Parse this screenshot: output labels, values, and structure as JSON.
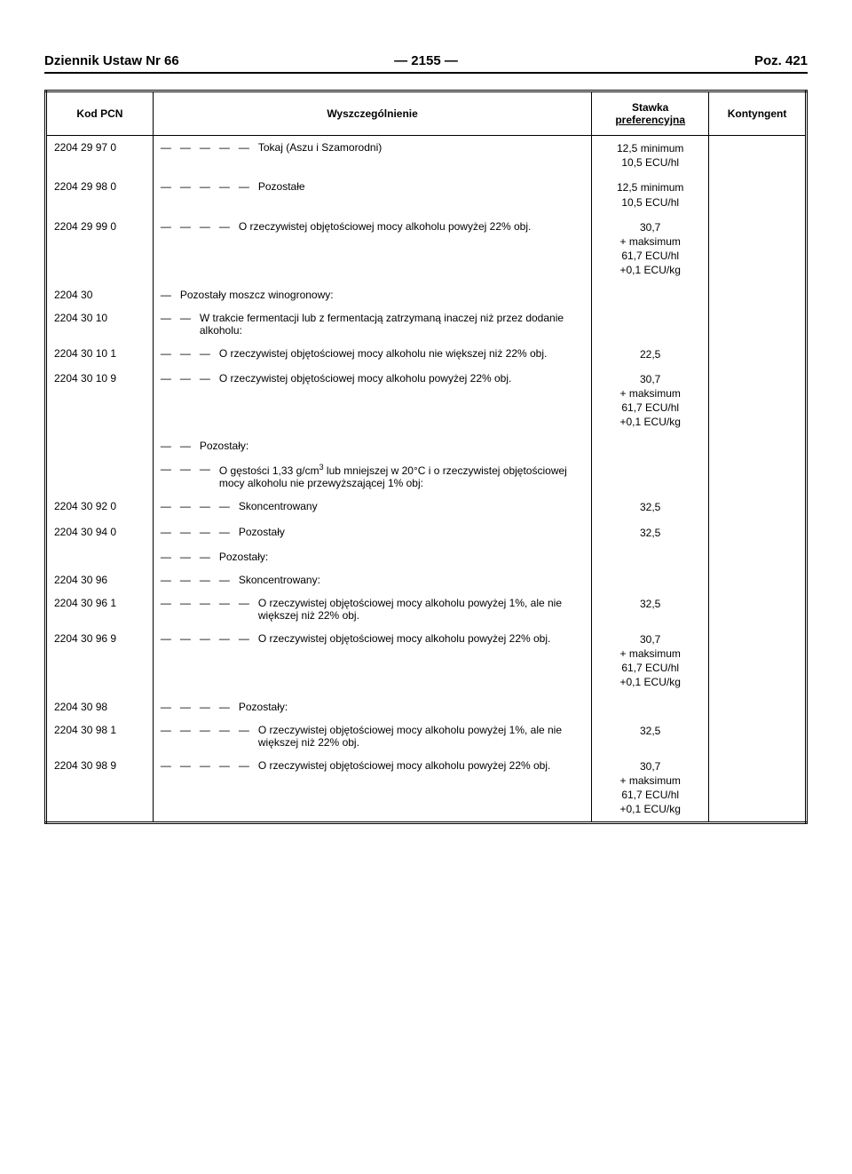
{
  "header": {
    "left": "Dziennik Ustaw Nr 66",
    "center": "—  2155  —",
    "right": "Poz. 421"
  },
  "columns": {
    "c1": "Kod PCN",
    "c2": "Wyszczególnienie",
    "c3_line1": "Stawka",
    "c3_line2": "preferencyjna",
    "c4": "Kontyngent"
  },
  "rows": [
    {
      "code": "2204 29 97 0",
      "dashes": "—   —   —   —   —   ",
      "desc": "Tokaj (Aszu i Szamorodni)",
      "rate": [
        "12,5  minimum",
        "10,5 ECU/hl"
      ],
      "quota": ""
    },
    {
      "code": "2204 29 98 0",
      "dashes": "—   —   —   —   —   ",
      "desc": "Pozostałe",
      "rate": [
        "12,5  minimum",
        "10,5 ECU/hl"
      ],
      "quota": ""
    },
    {
      "code": "2204 29 99 0",
      "dashes": "—   —   —   —   ",
      "desc": "O rzeczywistej objętościowej mocy alkoholu powyżej 22% obj.",
      "rate": [
        "30,7",
        "+ maksimum",
        "61,7 ECU/hl",
        "+0,1 ECU/kg"
      ],
      "quota": ""
    },
    {
      "code": "2204 30",
      "dashes": "—   ",
      "desc": "Pozostały moszcz winogronowy:",
      "rate": [],
      "quota": ""
    },
    {
      "code": "2204 30 10",
      "dashes": "—   —   ",
      "desc": "W trakcie fermentacji lub z fermentacją zatrzymaną inaczej niż przez dodanie alkoholu:",
      "rate": [],
      "quota": ""
    },
    {
      "code": "2204 30 10 1",
      "dashes": "—   —   —   ",
      "desc": "O rzeczywistej objętościowej mocy alkoholu nie większej niż 22% obj.",
      "rate": [
        "22,5"
      ],
      "quota": ""
    },
    {
      "code": "2204 30 10 9",
      "dashes": "—   —   —   ",
      "desc": "O rzeczywistej objętościowej mocy alkoholu powyżej 22% obj.",
      "rate": [
        "30,7",
        "+ maksimum",
        "61,7 ECU/hl",
        "+0,1 ECU/kg"
      ],
      "quota": ""
    },
    {
      "code": "",
      "dashes": "—   —   ",
      "desc": "Pozostały:",
      "rate": [],
      "quota": ""
    },
    {
      "code": "",
      "dashes": "—   —   —   ",
      "desc_html": "O gęstości 1,33 g/cm<sup>3</sup> lub mniejszej w 20°C i o rzeczywistej objętościowej mocy alkoholu nie przewyższającej 1% obj:",
      "rate": [],
      "quota": ""
    },
    {
      "code": "2204 30 92 0",
      "dashes": "—   —   —   —   ",
      "desc": "Skoncentrowany",
      "rate": [
        "32,5"
      ],
      "quota": ""
    },
    {
      "code": "2204 30 94 0",
      "dashes": "—   —   —   —   ",
      "desc": "Pozostały",
      "rate": [
        "32,5"
      ],
      "quota": ""
    },
    {
      "code": "",
      "dashes": "—   —   —   ",
      "desc": "Pozostały:",
      "rate": [],
      "quota": ""
    },
    {
      "code": "2204 30 96",
      "dashes": "—   —   —   —   ",
      "desc": "Skoncentrowany:",
      "rate": [],
      "quota": ""
    },
    {
      "code": "2204 30 96 1",
      "dashes": "—   —   —   —   —   ",
      "desc": "O rzeczywistej objętościowej mocy alkoholu powyżej 1%, ale nie większej niż 22% obj.",
      "rate": [
        "32,5"
      ],
      "quota": ""
    },
    {
      "code": "2204 30 96 9",
      "dashes": "—   —   —   —   —   ",
      "desc": "O rzeczywistej objętościowej mocy alkoholu powyżej 22% obj.",
      "rate": [
        "30,7",
        "+ maksimum",
        "61,7 ECU/hl",
        "+0,1 ECU/kg"
      ],
      "quota": ""
    },
    {
      "code": "2204 30 98",
      "dashes": "—   —   —   —   ",
      "desc": "Pozostały:",
      "rate": [],
      "quota": ""
    },
    {
      "code": "2204 30 98 1",
      "dashes": "—   —   —   —   —   ",
      "desc": "O rzeczywistej objętościowej mocy alkoholu powyżej 1%, ale nie większej niż 22% obj.",
      "rate": [
        "32,5"
      ],
      "quota": ""
    },
    {
      "code": "2204 30 98 9",
      "dashes": "—   —   —   —   —   ",
      "desc": "O rzeczywistej objętościowej mocy alkoholu powyżej 22% obj.",
      "rate": [
        "30,7",
        "+ maksimum",
        "61,7 ECU/hl",
        "+0,1 ECU/kg"
      ],
      "quota": ""
    }
  ]
}
